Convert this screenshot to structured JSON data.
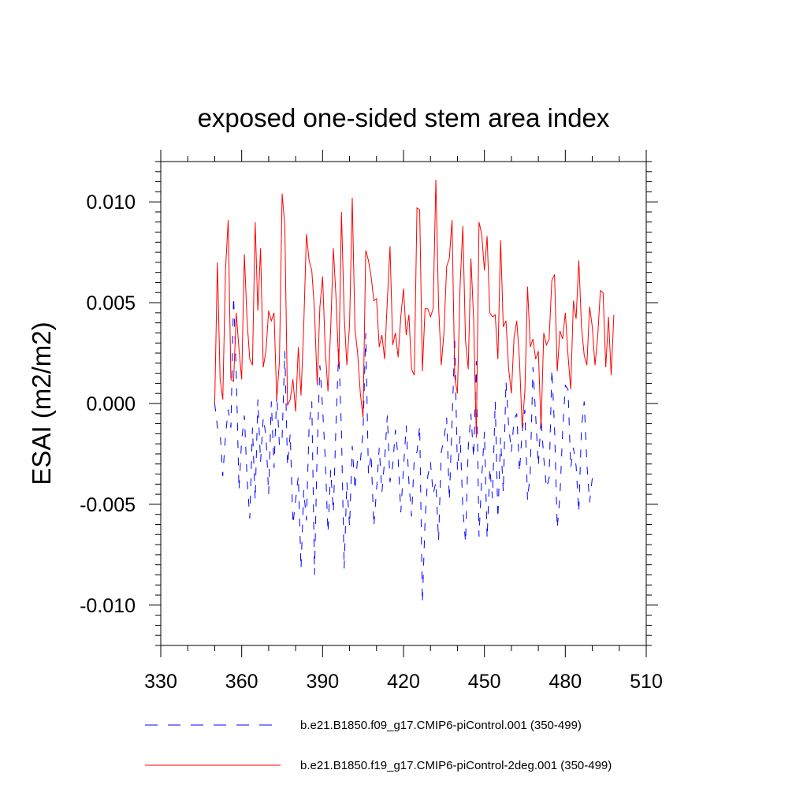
{
  "chart_data": {
    "type": "line",
    "title": "exposed one-sided stem area index",
    "xlabel": "",
    "ylabel": "ESAI  (m2/m2)",
    "xlim": [
      330,
      510
    ],
    "ylim": [
      -0.012,
      0.012
    ],
    "xticks": [
      330,
      360,
      390,
      420,
      450,
      480,
      510
    ],
    "xtick_labels": [
      "330",
      "360",
      "390",
      "420",
      "450",
      "480",
      "510"
    ],
    "yticks": [
      -0.01,
      -0.005,
      0.0,
      0.005,
      0.01
    ],
    "ytick_labels": [
      "-0.010",
      "-0.005",
      "0.000",
      "0.005",
      "0.010"
    ],
    "legend_position": "bottom",
    "series": [
      {
        "name": "b.e21.B1850.f09_g17.CMIP6-piControl.001 (350-499)",
        "color": "#0000ff",
        "style": "dashed",
        "x_start": 350,
        "values": [
          0.0,
          -0.0012,
          -0.0014,
          -0.0036,
          -0.0016,
          -0.0003,
          -0.0012,
          0.0053,
          0.0015,
          -0.0043,
          -0.0018,
          -0.0006,
          -0.0037,
          -0.0057,
          -0.0012,
          -0.0048,
          0.0002,
          -0.0029,
          -0.0007,
          -0.0016,
          -0.0045,
          0.0001,
          -0.0032,
          0.0005,
          -0.0021,
          -0.0017,
          0.0026,
          -0.0031,
          -0.0015,
          -0.006,
          -0.0048,
          -0.0036,
          -0.0082,
          -0.0043,
          -0.0058,
          -0.0011,
          0.0001,
          -0.0085,
          -0.0023,
          0.0019,
          -0.0002,
          -0.0028,
          -0.0064,
          -0.0033,
          -0.0054,
          -0.0009,
          0.0027,
          -0.0014,
          -0.0082,
          -0.0039,
          -0.0061,
          -0.0021,
          -0.0043,
          -0.0027,
          -0.0029,
          -0.0014,
          0.0035,
          -0.0035,
          -0.0025,
          -0.0061,
          -0.0043,
          -0.0022,
          -0.0044,
          -0.0028,
          -0.0006,
          -0.0039,
          -0.0031,
          -0.0013,
          -0.0027,
          -0.0054,
          -0.0032,
          -0.0011,
          -0.0039,
          -0.0056,
          -0.0027,
          -0.0024,
          -0.0011,
          -0.0099,
          -0.0058,
          -0.0036,
          -0.0029,
          -0.0045,
          -0.0039,
          -0.0068,
          -0.0024,
          -0.0018,
          -0.0007,
          -0.0048,
          -0.0009,
          0.0031,
          -0.0033,
          -0.0016,
          -0.0052,
          -0.0069,
          -0.0022,
          -0.0005,
          -0.0027,
          0.0021,
          -0.0066,
          -0.0037,
          -0.0014,
          -0.0067,
          -0.0032,
          -0.0047,
          0.0001,
          -0.0057,
          -0.0017,
          -0.0044,
          0.0011,
          -0.0011,
          -0.0024,
          -0.0008,
          -0.0005,
          -0.0034,
          -0.0014,
          -0.0003,
          -0.0048,
          -0.0034,
          0.0018,
          -0.0006,
          -0.0031,
          -0.0007,
          -0.0027,
          -0.0042,
          -0.0037,
          0.0017,
          -0.0012,
          -0.0062,
          -0.0046,
          -0.0014,
          0.0009,
          0.0007,
          -0.0032,
          -0.0022,
          -0.0031,
          -0.0054,
          -0.0012,
          0.0001,
          -0.003,
          -0.0049,
          -0.0037
        ]
      },
      {
        "name": "b.e21.B1850.f19_g17.CMIP6-piControl-2deg.001 (350-499)",
        "color": "#ff0000",
        "style": "solid",
        "x_start": 350,
        "values": [
          0.0,
          0.007,
          0.0012,
          0.0002,
          0.0066,
          0.0091,
          0.0012,
          0.0011,
          0.0045,
          0.0027,
          0.0012,
          0.0074,
          0.0041,
          0.0022,
          0.0019,
          0.009,
          0.0046,
          0.0077,
          0.0018,
          0.0026,
          0.0046,
          0.0041,
          0.0045,
          0.0002,
          0.0021,
          0.0104,
          0.0088,
          -0.0001,
          0.0002,
          0.0012,
          -0.0004,
          0.0028,
          0.0004,
          0.0038,
          0.0084,
          0.0071,
          0.0066,
          0.0046,
          0.0009,
          0.0048,
          0.0063,
          0.0026,
          0.0006,
          0.0037,
          0.0077,
          0.0052,
          0.0018,
          0.0095,
          0.0044,
          0.0019,
          0.0039,
          0.0102,
          0.0037,
          0.0025,
          0.0005,
          -0.0007,
          0.0076,
          0.0071,
          0.0063,
          0.0051,
          0.0052,
          0.0028,
          0.0034,
          0.0022,
          0.0051,
          0.0078,
          0.0029,
          0.0035,
          0.0023,
          0.0043,
          0.0057,
          0.0034,
          0.0044,
          0.0017,
          0.0014,
          0.0097,
          0.0096,
          0.0016,
          0.0047,
          0.0047,
          0.0043,
          0.0047,
          0.0111,
          0.0049,
          0.0019,
          0.0035,
          0.0068,
          0.0072,
          0.0091,
          0.0013,
          0.0005,
          0.0059,
          0.0088,
          0.0031,
          0.0017,
          0.0072,
          0.0042,
          -0.0017,
          0.009,
          0.0084,
          0.0066,
          0.0083,
          0.0045,
          0.0043,
          0.0044,
          0.0022,
          0.0081,
          0.0038,
          0.0041,
          0.0017,
          0.0005,
          0.0033,
          0.0041,
          0.0022,
          -0.0012,
          0.0006,
          0.0058,
          0.0028,
          0.0032,
          0.0022,
          0.0026,
          -0.0012,
          0.0035,
          0.0029,
          0.0032,
          0.0061,
          0.0064,
          0.0016,
          0.0036,
          0.0032,
          0.0045,
          0.0024,
          0.0007,
          0.0051,
          0.0042,
          0.0071,
          0.0038,
          0.0024,
          0.0019,
          0.0048,
          0.0038,
          0.0019,
          0.0033,
          0.0056,
          0.0055,
          0.0018,
          0.0043,
          0.0014,
          0.0044
        ]
      }
    ]
  }
}
